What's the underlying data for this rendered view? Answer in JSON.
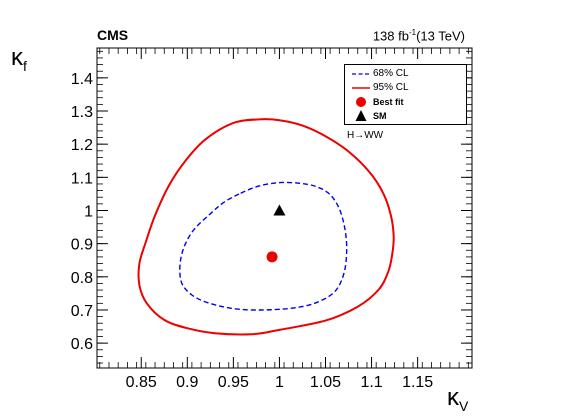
{
  "header": {
    "experiment": "CMS",
    "luminosity": "138 fb",
    "lumi_exponent": "-1",
    "energy": "(13 TeV)"
  },
  "axes": {
    "x_title": "κ",
    "x_sub": "V",
    "y_title": "κ",
    "y_sub": "f"
  },
  "legend": {
    "items": [
      {
        "label": "68% CL",
        "style": "dashed-line",
        "color": "#0000ee"
      },
      {
        "label": "95% CL",
        "style": "solid-line",
        "color": "#ee0000"
      },
      {
        "label": "Best fit",
        "style": "marker-circle",
        "color": "#ee0000"
      },
      {
        "label": "SM",
        "style": "marker-triangle",
        "color": "#000000"
      }
    ]
  },
  "process_label": "H→WW",
  "chart_data": {
    "type": "scatter",
    "x_ticks": [
      "0.85",
      "0.9",
      "0.95",
      "1",
      "1.05",
      "1.1",
      "1.15"
    ],
    "y_ticks": [
      "0.6",
      "0.7",
      "0.8",
      "0.9",
      "1",
      "1.1",
      "1.2",
      "1.3",
      "1.4"
    ],
    "xlim": [
      0.802,
      1.209
    ],
    "ylim": [
      0.525,
      1.49
    ],
    "best_fit": {
      "x": 0.992,
      "y": 0.86
    },
    "sm": {
      "x": 1.0,
      "y": 1.0
    },
    "contour_68": [
      [
        0.958,
        1.052
      ],
      [
        0.978,
        1.074
      ],
      [
        1.0,
        1.084
      ],
      [
        1.022,
        1.082
      ],
      [
        1.04,
        1.072
      ],
      [
        1.055,
        1.048
      ],
      [
        1.065,
        1.005
      ],
      [
        1.071,
        0.945
      ],
      [
        1.073,
        0.88
      ],
      [
        1.07,
        0.81
      ],
      [
        1.06,
        0.755
      ],
      [
        1.04,
        0.722
      ],
      [
        1.02,
        0.708
      ],
      [
        1.0,
        0.702
      ],
      [
        0.98,
        0.7
      ],
      [
        0.96,
        0.701
      ],
      [
        0.94,
        0.709
      ],
      [
        0.92,
        0.724
      ],
      [
        0.905,
        0.745
      ],
      [
        0.895,
        0.775
      ],
      [
        0.892,
        0.81
      ],
      [
        0.893,
        0.855
      ],
      [
        0.898,
        0.9
      ],
      [
        0.908,
        0.945
      ],
      [
        0.925,
        0.99
      ],
      [
        0.94,
        1.025
      ]
    ],
    "contour_95": [
      [
        0.95,
        1.264
      ],
      [
        0.98,
        1.275
      ],
      [
        1.0,
        1.272
      ],
      [
        1.025,
        1.256
      ],
      [
        1.05,
        1.224
      ],
      [
        1.075,
        1.178
      ],
      [
        1.098,
        1.115
      ],
      [
        1.113,
        1.05
      ],
      [
        1.121,
        0.985
      ],
      [
        1.124,
        0.92
      ],
      [
        1.122,
        0.86
      ],
      [
        1.118,
        0.815
      ],
      [
        1.108,
        0.762
      ],
      [
        1.085,
        0.71
      ],
      [
        1.05,
        0.668
      ],
      [
        1.0,
        0.64
      ],
      [
        0.97,
        0.627
      ],
      [
        0.93,
        0.63
      ],
      [
        0.9,
        0.645
      ],
      [
        0.875,
        0.67
      ],
      [
        0.856,
        0.72
      ],
      [
        0.848,
        0.775
      ],
      [
        0.848,
        0.84
      ],
      [
        0.855,
        0.905
      ],
      [
        0.865,
        0.985
      ],
      [
        0.88,
        1.075
      ],
      [
        0.898,
        1.15
      ],
      [
        0.92,
        1.215
      ]
    ]
  }
}
